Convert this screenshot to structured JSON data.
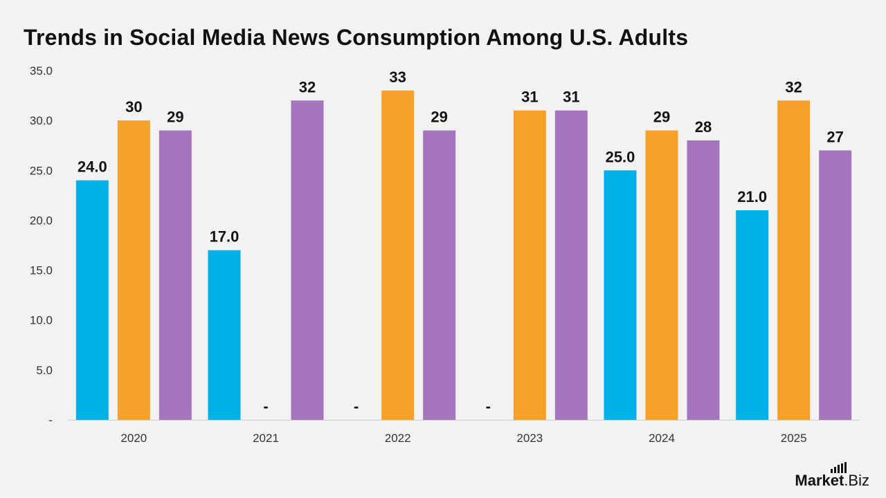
{
  "title": "Trends in Social Media News Consumption Among U.S. Adults",
  "logo": {
    "text_main": "Market",
    "text_dot": ".Biz"
  },
  "colors": {
    "series": [
      "#00b0e6",
      "#f8a12a",
      "#a575be"
    ],
    "axis": "#cccccc"
  },
  "chart_data": {
    "type": "bar",
    "categories": [
      "2020",
      "2021",
      "2022",
      "2023",
      "2024",
      "2025"
    ],
    "series": [
      {
        "values": [
          24.0,
          17.0,
          null,
          null,
          25.0,
          21.0
        ],
        "labels": [
          "24.0",
          "17.0",
          "-",
          "-",
          "25.0",
          "21.0"
        ]
      },
      {
        "values": [
          30,
          null,
          33,
          31,
          29,
          32
        ],
        "labels": [
          "30",
          "-",
          "33",
          "31",
          "29",
          "32"
        ]
      },
      {
        "values": [
          29,
          32,
          29,
          31,
          28,
          27
        ],
        "labels": [
          "29",
          "32",
          "29",
          "31",
          "28",
          "27"
        ]
      }
    ],
    "y_ticks": [
      "-",
      "5.0",
      "10.0",
      "15.0",
      "20.0",
      "25.0",
      "30.0",
      "35.0"
    ],
    "ylim": [
      0,
      35
    ],
    "grid": false,
    "legend": "none"
  }
}
